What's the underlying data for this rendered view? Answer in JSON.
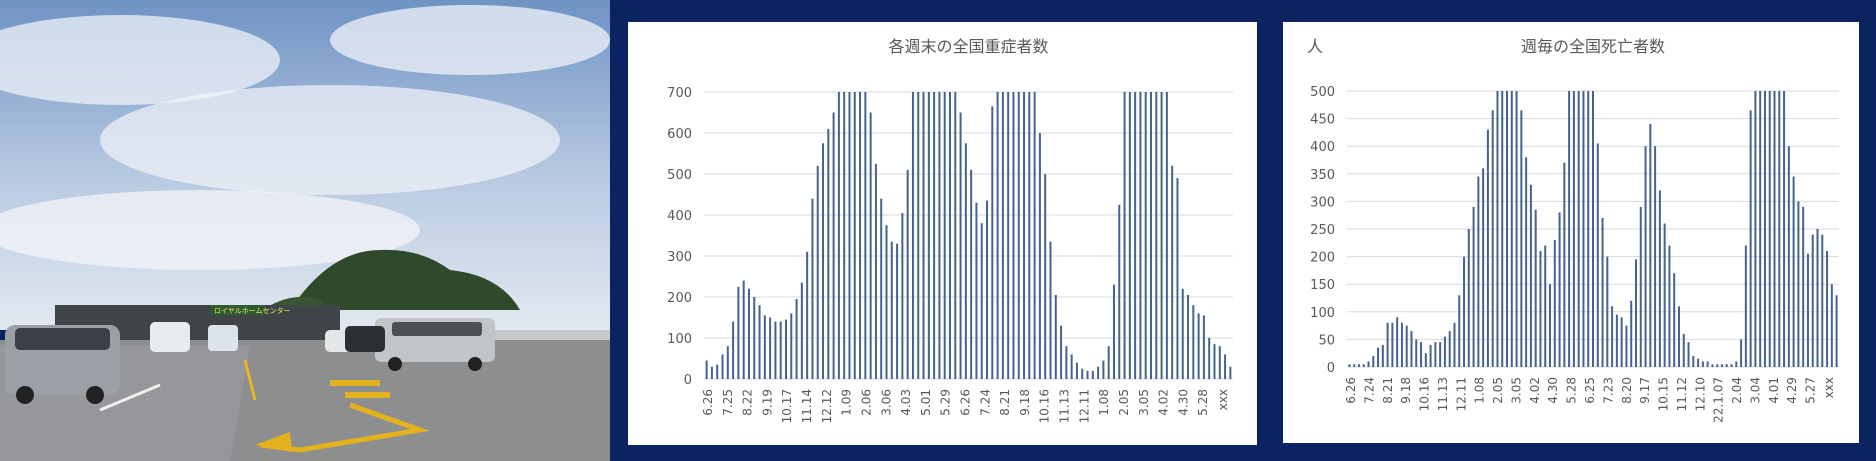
{
  "photo": {
    "sign_text": "ロイヤルホームセンター",
    "colors": {
      "sky_top": "#7a9cc8",
      "sky_low": "#d9e2ee",
      "mountain": "#2f4a2a",
      "lot": "#8a8c8e",
      "marking": "#e6b41a"
    }
  },
  "chart_data": [
    {
      "type": "bar",
      "title": "各週末の全国重症者数",
      "color": "#46628f",
      "ylim": [
        0,
        700
      ],
      "yticks": [
        0,
        100,
        200,
        300,
        400,
        500,
        600,
        700
      ],
      "xticklabels": [
        "6.26",
        "7.25",
        "8.22",
        "9.19",
        "10.17",
        "11.14",
        "12.12",
        "1.09",
        "2.06",
        "3.06",
        "4.03",
        "5.01",
        "5.29",
        "6.26",
        "7.24",
        "8.21",
        "9.18",
        "10.16",
        "11.13",
        "12.11",
        "1.08",
        "2.05",
        "3.05",
        "4.02",
        "4.30",
        "5.28",
        "xxx"
      ],
      "values": [
        45,
        30,
        35,
        60,
        80,
        140,
        225,
        240,
        220,
        200,
        180,
        155,
        150,
        140,
        140,
        145,
        160,
        195,
        235,
        310,
        440,
        520,
        575,
        610,
        650,
        700,
        700,
        700,
        700,
        700,
        700,
        650,
        525,
        440,
        375,
        335,
        330,
        405,
        510,
        700,
        700,
        700,
        700,
        700,
        700,
        700,
        700,
        700,
        650,
        575,
        510,
        430,
        380,
        435,
        665,
        700,
        700,
        700,
        700,
        700,
        700,
        700,
        700,
        600,
        500,
        335,
        205,
        130,
        80,
        60,
        40,
        25,
        20,
        20,
        30,
        45,
        80,
        230,
        425,
        700,
        700,
        700,
        700,
        700,
        700,
        700,
        700,
        700,
        520,
        490,
        220,
        205,
        180,
        160,
        155,
        100,
        85,
        80,
        60,
        30
      ]
    },
    {
      "type": "bar",
      "title": "週毎の全国死亡者数",
      "ylabel": "人",
      "color": "#46628f",
      "ylim": [
        0,
        500
      ],
      "yticks": [
        0,
        50,
        100,
        150,
        200,
        250,
        300,
        350,
        400,
        450,
        500
      ],
      "xticklabels": [
        "6.26",
        "7.24",
        "8.21",
        "9.18",
        "10.16",
        "11.13",
        "12.11",
        "1.08",
        "2.05",
        "3.05",
        "4.02",
        "4.30",
        "5.28",
        "6.25",
        "7.23",
        "8.20",
        "9.17",
        "10.15",
        "11.12",
        "12.10",
        "22.1.07",
        "2.04",
        "3.04",
        "4.01",
        "4.29",
        "5.27",
        "xxx"
      ],
      "values": [
        5,
        5,
        5,
        5,
        10,
        20,
        35,
        40,
        80,
        80,
        90,
        80,
        75,
        65,
        50,
        45,
        25,
        40,
        45,
        45,
        55,
        65,
        80,
        130,
        200,
        250,
        290,
        345,
        360,
        430,
        465,
        500,
        500,
        500,
        500,
        500,
        465,
        380,
        330,
        285,
        210,
        220,
        150,
        230,
        280,
        370,
        500,
        500,
        500,
        500,
        500,
        500,
        405,
        270,
        200,
        110,
        95,
        90,
        75,
        120,
        195,
        290,
        400,
        440,
        400,
        320,
        260,
        220,
        170,
        110,
        60,
        45,
        20,
        15,
        10,
        10,
        5,
        5,
        5,
        5,
        5,
        10,
        50,
        220,
        465,
        500,
        500,
        500,
        500,
        500,
        500,
        500,
        400,
        345,
        300,
        290,
        205,
        240,
        250,
        240,
        210,
        150,
        130
      ]
    }
  ]
}
